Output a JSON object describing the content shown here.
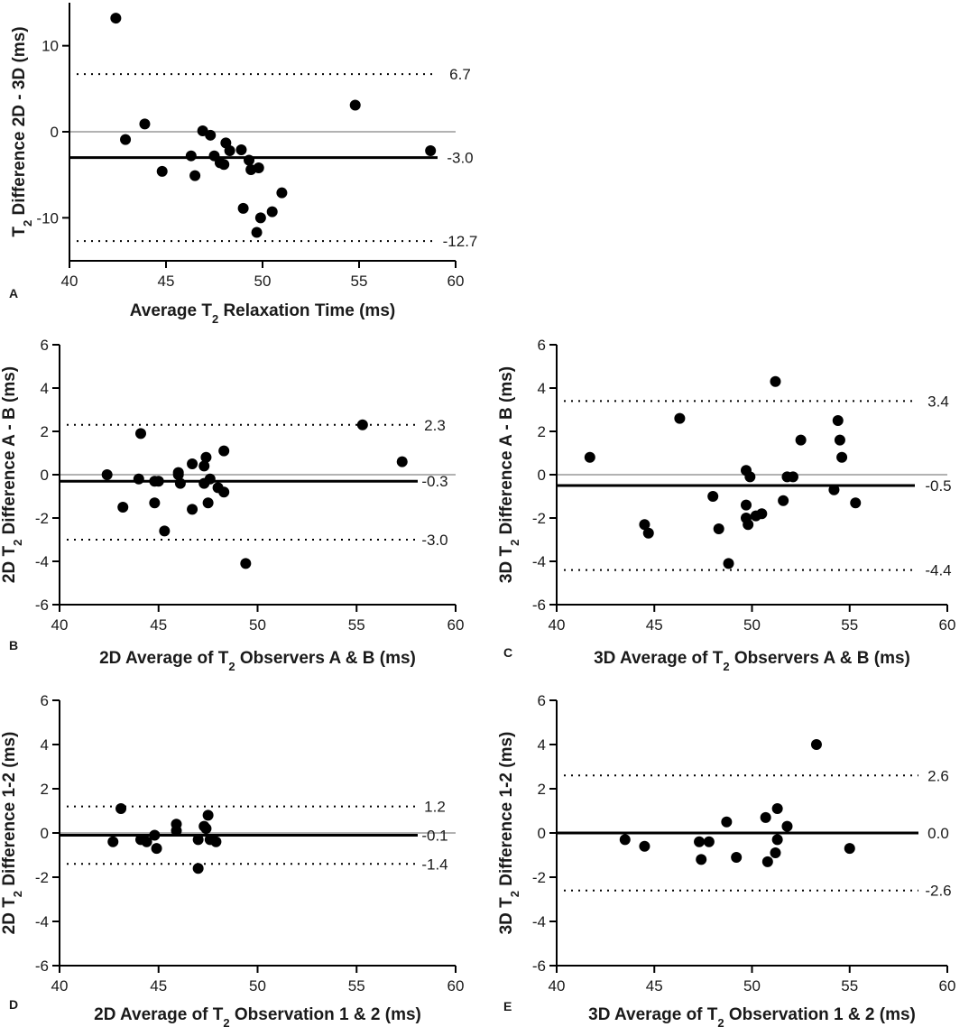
{
  "chart_data": [
    {
      "id": "A",
      "type": "scatter",
      "panel_letter": "A",
      "ylabel_pre": "T",
      "ylabel_sub": "2",
      "ylabel_post": " Difference 2D - 3D (ms)",
      "xlabel_pre": "Average T",
      "xlabel_sub": "2",
      "xlabel_post": " Relaxation Time (ms)",
      "xlim": [
        40,
        60
      ],
      "ylim": [
        -15,
        15
      ],
      "xticks": [
        40,
        45,
        50,
        55,
        60
      ],
      "yticks": [
        -10,
        0,
        10
      ],
      "zero_line": true,
      "mean": -3.0,
      "mean_label": "-3.0",
      "upper_loa": 6.7,
      "upper_label": "6.7",
      "lower_loa": -12.7,
      "lower_label": "-12.7",
      "points": [
        [
          42.4,
          13.2
        ],
        [
          42.9,
          -0.9
        ],
        [
          43.9,
          0.9
        ],
        [
          44.8,
          -4.6
        ],
        [
          46.3,
          -2.8
        ],
        [
          46.5,
          -5.1
        ],
        [
          46.9,
          0.1
        ],
        [
          47.3,
          -0.4
        ],
        [
          47.5,
          -2.8
        ],
        [
          47.8,
          -3.6
        ],
        [
          48.0,
          -3.8
        ],
        [
          48.1,
          -1.3
        ],
        [
          48.3,
          -2.2
        ],
        [
          48.9,
          -2.1
        ],
        [
          49.0,
          -8.9
        ],
        [
          49.3,
          -3.3
        ],
        [
          49.4,
          -4.4
        ],
        [
          49.7,
          -11.7
        ],
        [
          49.8,
          -4.2
        ],
        [
          49.9,
          -10.0
        ],
        [
          50.5,
          -9.3
        ],
        [
          51.0,
          -7.1
        ],
        [
          54.8,
          3.1
        ],
        [
          58.7,
          -2.2
        ]
      ]
    },
    {
      "id": "B",
      "type": "scatter",
      "panel_letter": "B",
      "ylabel_pre": "2D T",
      "ylabel_sub": "2",
      "ylabel_post": " Difference A - B (ms)",
      "xlabel_pre": "2D Average of T",
      "xlabel_sub": "2",
      "xlabel_post": " Observers A & B  (ms)",
      "xlim": [
        40,
        60
      ],
      "ylim": [
        -6,
        6
      ],
      "xticks": [
        40,
        45,
        50,
        55,
        60
      ],
      "yticks": [
        -6,
        -4,
        -2,
        0,
        2,
        4,
        6
      ],
      "zero_line": true,
      "mean": -0.3,
      "mean_label": "-0.3",
      "upper_loa": 2.3,
      "upper_label": "2.3",
      "lower_loa": -3.0,
      "lower_label": "-3.0",
      "points": [
        [
          42.4,
          0.0
        ],
        [
          43.2,
          -1.5
        ],
        [
          44.0,
          -0.2
        ],
        [
          44.1,
          1.9
        ],
        [
          44.8,
          -0.3
        ],
        [
          44.8,
          -1.3
        ],
        [
          45.0,
          -0.3
        ],
        [
          45.3,
          -2.6
        ],
        [
          46.0,
          0.0
        ],
        [
          46.0,
          0.1
        ],
        [
          46.1,
          -0.4
        ],
        [
          46.7,
          0.5
        ],
        [
          46.7,
          -1.6
        ],
        [
          47.3,
          0.4
        ],
        [
          47.3,
          -0.4
        ],
        [
          47.4,
          0.8
        ],
        [
          47.5,
          -1.3
        ],
        [
          47.6,
          -0.2
        ],
        [
          48.0,
          -0.6
        ],
        [
          48.3,
          -0.8
        ],
        [
          48.3,
          1.1
        ],
        [
          49.4,
          -4.1
        ],
        [
          55.3,
          2.3
        ],
        [
          57.3,
          0.6
        ]
      ]
    },
    {
      "id": "C",
      "type": "scatter",
      "panel_letter": "C",
      "ylabel_pre": "3D T",
      "ylabel_sub": "2",
      "ylabel_post": " Difference A - B (ms)",
      "xlabel_pre": "3D Average of T",
      "xlabel_sub": "2",
      "xlabel_post": " Observers A & B  (ms)",
      "xlim": [
        40,
        60
      ],
      "ylim": [
        -6,
        6
      ],
      "xticks": [
        40,
        45,
        50,
        55,
        60
      ],
      "yticks": [
        -6,
        -4,
        -2,
        0,
        2,
        4,
        6
      ],
      "zero_line": true,
      "mean": -0.5,
      "mean_label": "-0.5",
      "upper_loa": 3.4,
      "upper_label": "3.4",
      "lower_loa": -4.4,
      "lower_label": "-4.4",
      "points": [
        [
          41.7,
          0.8
        ],
        [
          44.5,
          -2.3
        ],
        [
          44.7,
          -2.7
        ],
        [
          46.3,
          2.6
        ],
        [
          48.0,
          -1.0
        ],
        [
          48.3,
          -2.5
        ],
        [
          48.8,
          -4.1
        ],
        [
          49.7,
          0.2
        ],
        [
          49.7,
          -1.4
        ],
        [
          49.7,
          -2.0
        ],
        [
          49.8,
          -2.3
        ],
        [
          49.9,
          -0.1
        ],
        [
          50.2,
          -1.9
        ],
        [
          50.5,
          -1.8
        ],
        [
          51.2,
          4.3
        ],
        [
          51.6,
          -1.2
        ],
        [
          51.8,
          -0.1
        ],
        [
          52.1,
          -0.1
        ],
        [
          52.5,
          1.6
        ],
        [
          54.2,
          -0.7
        ],
        [
          54.4,
          2.5
        ],
        [
          54.5,
          1.6
        ],
        [
          54.6,
          0.8
        ],
        [
          55.3,
          -1.3
        ]
      ]
    },
    {
      "id": "D",
      "type": "scatter",
      "panel_letter": "D",
      "ylabel_pre": "2D T",
      "ylabel_sub": "2",
      "ylabel_post": " Difference 1-2 (ms)",
      "xlabel_pre": "2D Average of T",
      "xlabel_sub": "2",
      "xlabel_post": " Observation 1 & 2 (ms)",
      "xlim": [
        40,
        60
      ],
      "ylim": [
        -6,
        6
      ],
      "xticks": [
        40,
        45,
        50,
        55,
        60
      ],
      "yticks": [
        -6,
        -4,
        -2,
        0,
        2,
        4,
        6
      ],
      "zero_line": true,
      "mean": -0.1,
      "mean_label": "-0.1",
      "upper_loa": 1.2,
      "upper_label": "1.2",
      "lower_loa": -1.4,
      "lower_label": "-1.4",
      "points": [
        [
          42.7,
          -0.4
        ],
        [
          43.1,
          1.1
        ],
        [
          44.1,
          -0.3
        ],
        [
          44.4,
          -0.4
        ],
        [
          44.8,
          -0.1
        ],
        [
          44.9,
          -0.7
        ],
        [
          45.9,
          0.4
        ],
        [
          45.9,
          0.1
        ],
        [
          47.0,
          -0.3
        ],
        [
          47.0,
          -1.6
        ],
        [
          47.3,
          0.3
        ],
        [
          47.4,
          0.2
        ],
        [
          47.5,
          0.8
        ],
        [
          47.6,
          -0.3
        ],
        [
          47.9,
          -0.4
        ]
      ]
    },
    {
      "id": "E",
      "type": "scatter",
      "panel_letter": "E",
      "ylabel_pre": "3D T",
      "ylabel_sub": "2",
      "ylabel_post": " Difference 1-2 (ms)",
      "xlabel_pre": "3D Average of T",
      "xlabel_sub": "2",
      "xlabel_post": " Observation 1 & 2 (ms)",
      "xlim": [
        40,
        60
      ],
      "ylim": [
        -6,
        6
      ],
      "xticks": [
        40,
        45,
        50,
        55,
        60
      ],
      "yticks": [
        -6,
        -4,
        -2,
        0,
        2,
        4,
        6
      ],
      "zero_line": false,
      "mean": 0.0,
      "mean_label": "0.0",
      "upper_loa": 2.6,
      "upper_label": "2.6",
      "lower_loa": -2.6,
      "lower_label": "-2.6",
      "points": [
        [
          43.5,
          -0.3
        ],
        [
          44.5,
          -0.6
        ],
        [
          47.3,
          -0.4
        ],
        [
          47.4,
          -1.2
        ],
        [
          47.8,
          -0.4
        ],
        [
          48.7,
          0.5
        ],
        [
          49.2,
          -1.1
        ],
        [
          50.7,
          0.7
        ],
        [
          50.8,
          -1.3
        ],
        [
          51.2,
          -0.9
        ],
        [
          51.3,
          1.1
        ],
        [
          51.3,
          -0.3
        ],
        [
          51.8,
          0.3
        ],
        [
          53.3,
          4.0
        ],
        [
          55.0,
          -0.7
        ]
      ]
    }
  ]
}
